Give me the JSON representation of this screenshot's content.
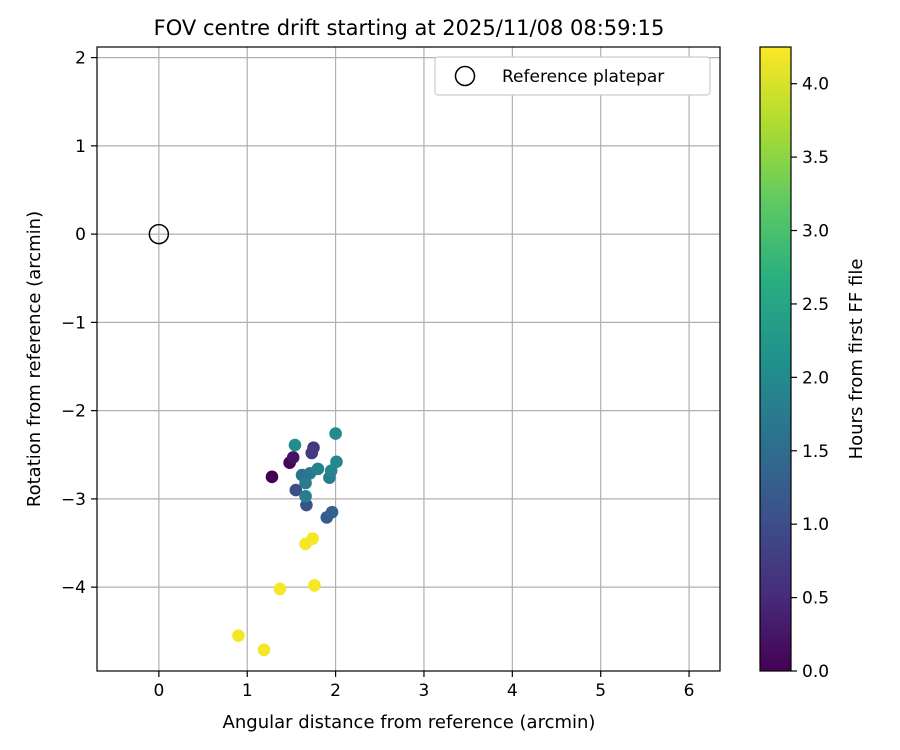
{
  "chart_data": {
    "type": "scatter",
    "title": "FOV centre drift starting at 2025/11/08 08:59:15",
    "xlabel": "Angular distance from reference (arcmin)",
    "ylabel": "Rotation from reference (arcmin)",
    "xlim": [
      -0.7,
      6.35
    ],
    "ylim": [
      -4.95,
      2.12
    ],
    "xticks": [
      0,
      1,
      2,
      3,
      4,
      5,
      6
    ],
    "yticks": [
      -4,
      -3,
      -2,
      -1,
      0,
      1,
      2
    ],
    "grid": true,
    "legend": {
      "placement": "top-right",
      "entries": [
        "Reference platepar"
      ]
    },
    "reference_point": {
      "x": 0,
      "y": 0,
      "label": "Reference platepar"
    },
    "colorbar": {
      "label": "Hours from first FF file",
      "range": [
        0.0,
        4.25
      ],
      "ticks": [
        0.0,
        0.5,
        1.0,
        1.5,
        2.0,
        2.5,
        3.0,
        3.5,
        4.0
      ],
      "tick_labels": [
        "0.0",
        "0.5",
        "1.0",
        "1.5",
        "2.0",
        "2.5",
        "3.0",
        "3.5",
        "4.0"
      ],
      "colormap": "viridis"
    },
    "points": [
      {
        "x": 1.28,
        "y": -2.75,
        "hours": 0.0
      },
      {
        "x": 1.48,
        "y": -2.59,
        "hours": 0.05
      },
      {
        "x": 1.52,
        "y": -2.53,
        "hours": 0.2
      },
      {
        "x": 1.75,
        "y": -2.42,
        "hours": 0.7
      },
      {
        "x": 1.73,
        "y": -2.48,
        "hours": 0.75
      },
      {
        "x": 1.55,
        "y": -2.9,
        "hours": 1.0
      },
      {
        "x": 1.67,
        "y": -3.07,
        "hours": 1.05
      },
      {
        "x": 1.9,
        "y": -3.21,
        "hours": 1.2
      },
      {
        "x": 1.96,
        "y": -3.15,
        "hours": 1.35
      },
      {
        "x": 1.62,
        "y": -2.73,
        "hours": 1.6
      },
      {
        "x": 1.71,
        "y": -2.71,
        "hours": 1.7
      },
      {
        "x": 1.66,
        "y": -2.82,
        "hours": 1.75
      },
      {
        "x": 1.66,
        "y": -2.97,
        "hours": 1.8
      },
      {
        "x": 1.8,
        "y": -2.66,
        "hours": 1.85
      },
      {
        "x": 1.93,
        "y": -2.76,
        "hours": 1.8
      },
      {
        "x": 1.95,
        "y": -2.68,
        "hours": 1.9
      },
      {
        "x": 2.01,
        "y": -2.58,
        "hours": 1.95
      },
      {
        "x": 2.0,
        "y": -2.26,
        "hours": 2.0
      },
      {
        "x": 1.54,
        "y": -2.39,
        "hours": 2.05
      },
      {
        "x": 1.66,
        "y": -3.51,
        "hours": 4.2
      },
      {
        "x": 1.74,
        "y": -3.45,
        "hours": 4.2
      },
      {
        "x": 1.76,
        "y": -3.98,
        "hours": 4.2
      },
      {
        "x": 1.37,
        "y": -4.02,
        "hours": 4.2
      },
      {
        "x": 0.9,
        "y": -4.55,
        "hours": 4.2
      },
      {
        "x": 1.19,
        "y": -4.71,
        "hours": 4.2
      }
    ]
  }
}
